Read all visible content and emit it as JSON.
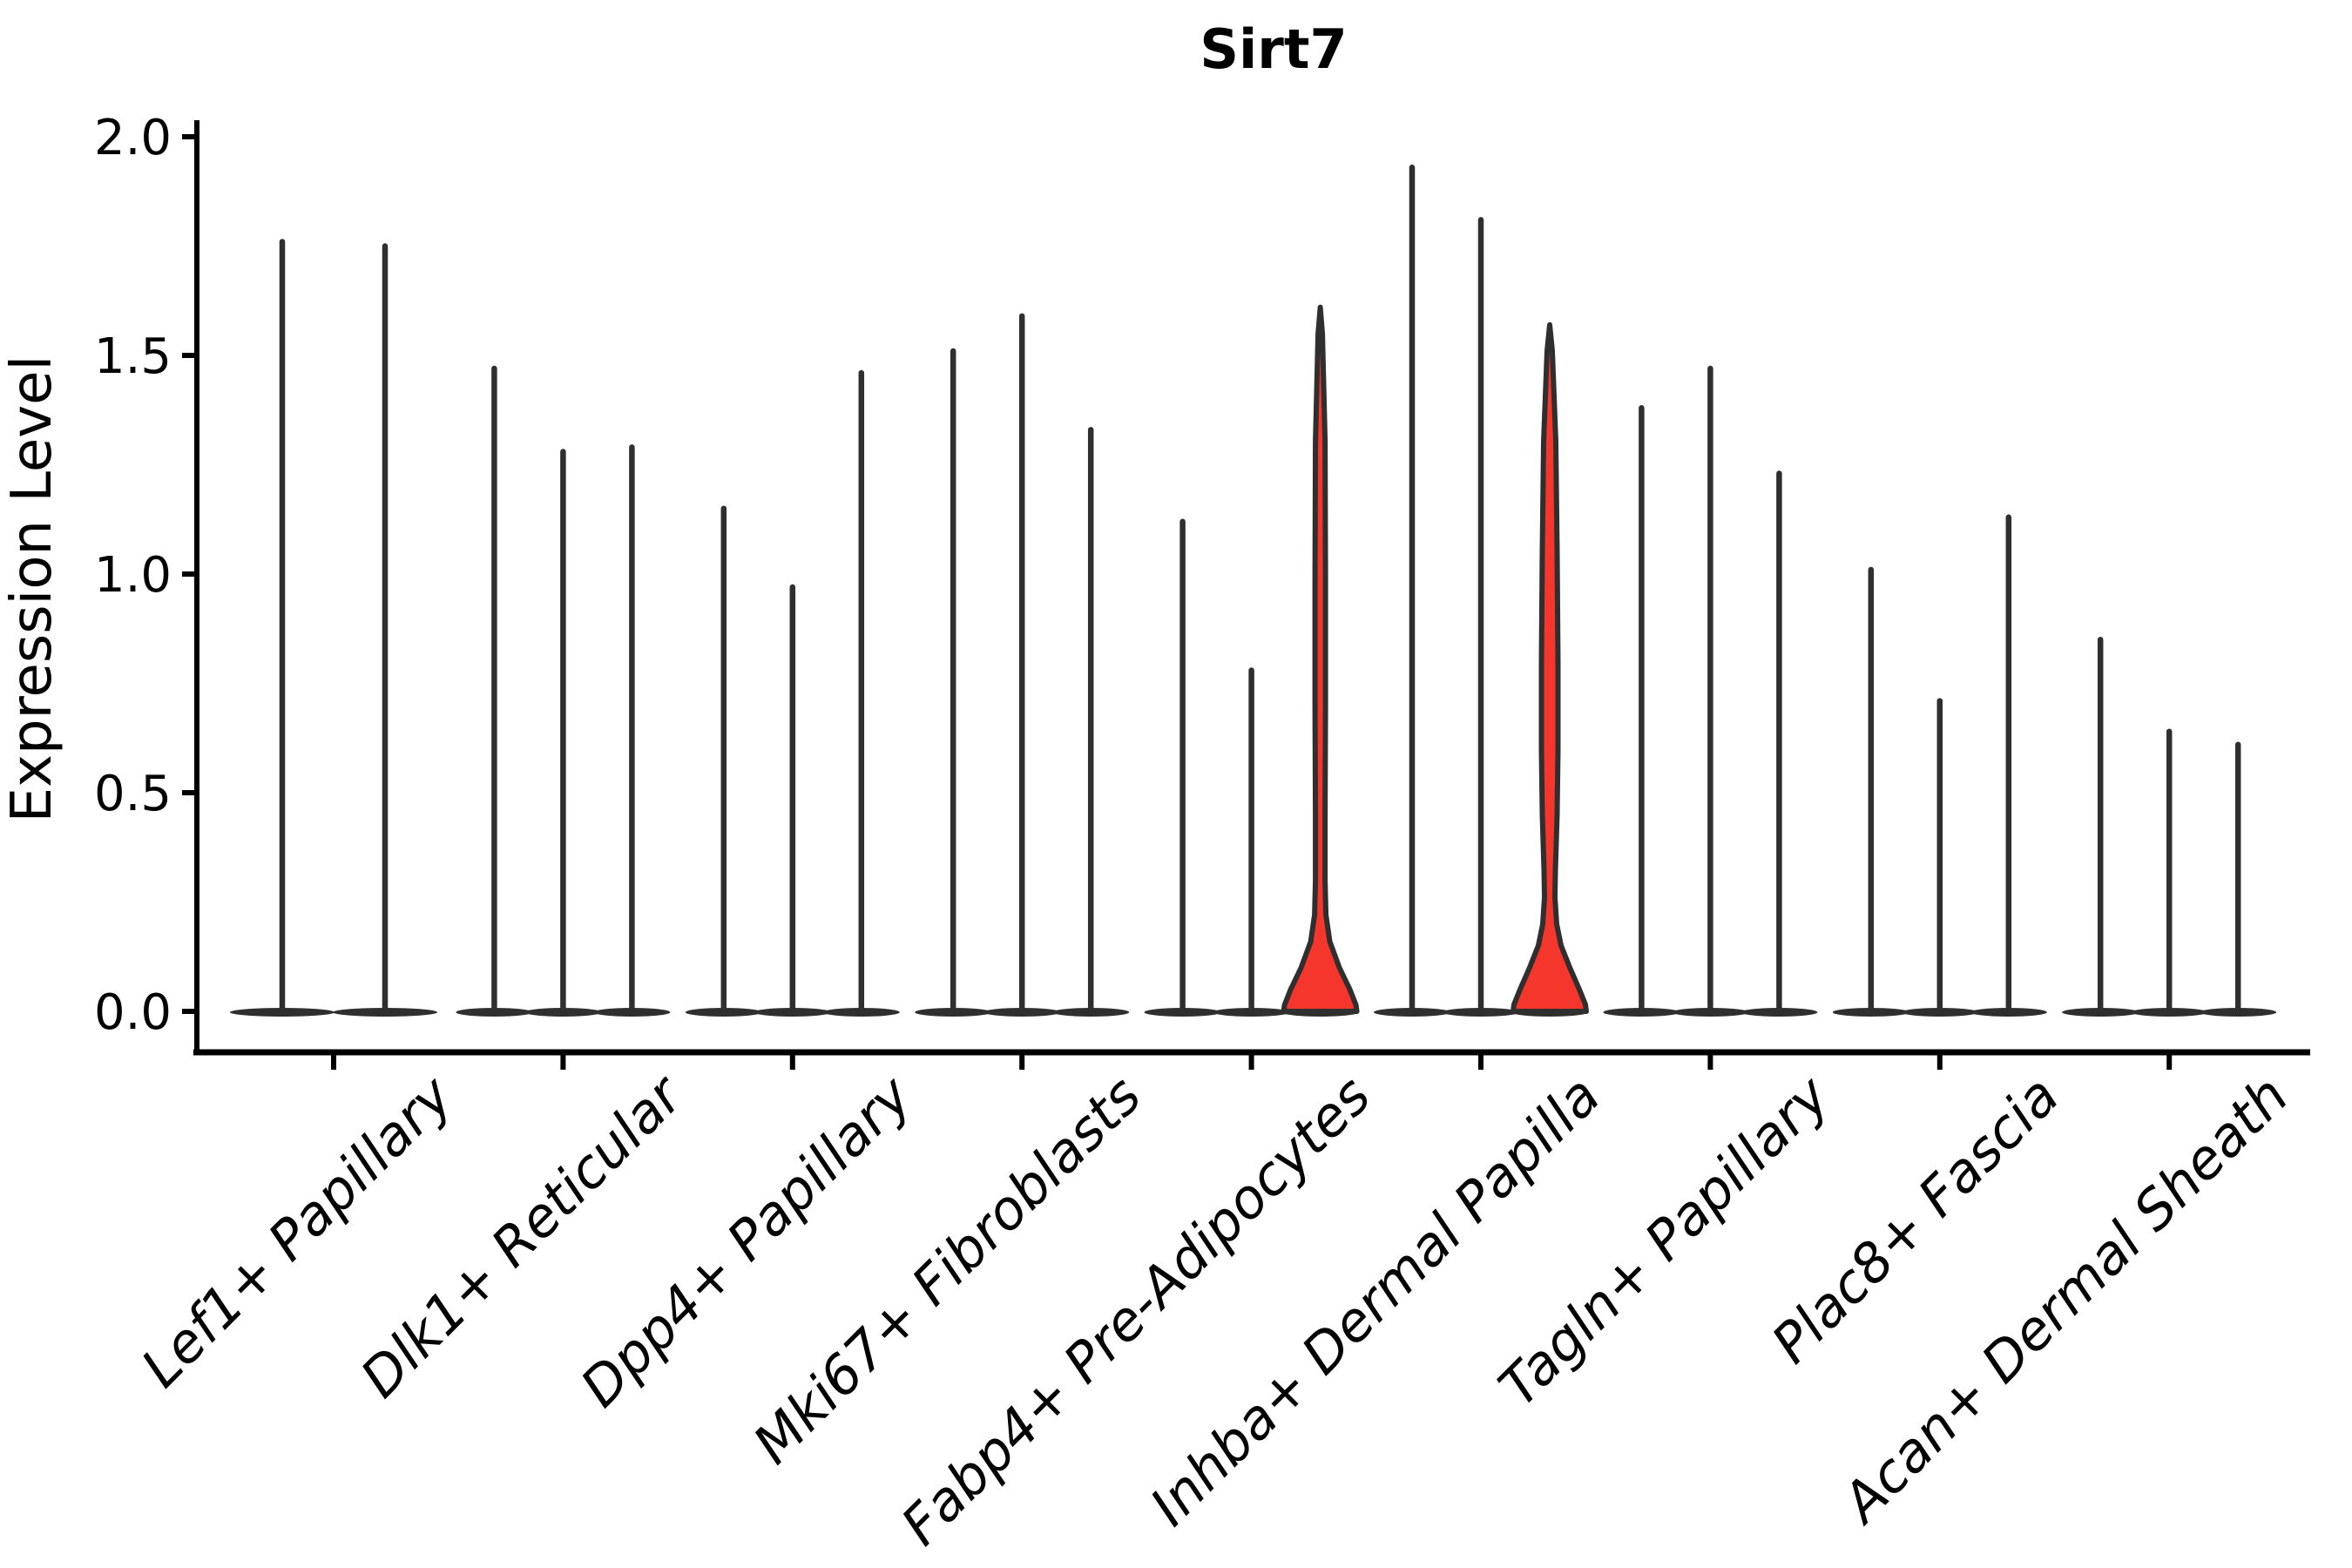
{
  "title": "Sirt7",
  "ylabel": "Expression Level",
  "chart_data": {
    "type": "violin",
    "title": "Sirt7",
    "xlabel": "",
    "ylabel": "Expression Level",
    "ylim": [
      0.0,
      2.0
    ],
    "yticks": [
      0.0,
      0.5,
      1.0,
      1.5,
      2.0
    ],
    "ytick_labels": [
      "0.0",
      "0.5",
      "1.0",
      "1.5",
      "2.0"
    ],
    "grid": false,
    "legend": false,
    "categories": [
      "Lef1+ Papillary",
      "Dlk1+ Reticular",
      "Dpp4+ Papillary",
      "Mki67+ Fibroblasts",
      "Fabp4+ Pre-Adipocytes",
      "Inhba+ Dermal Papilla",
      "Tagln+ Papillary",
      "Plac8+ Fascia",
      "Acan+ Dermal Sheath"
    ],
    "groups": [
      {
        "label": "Lef1+ Papillary",
        "violins": [
          {
            "max_expression": 1.76,
            "highlighted": false,
            "shape": "spike"
          },
          {
            "max_expression": 1.75,
            "highlighted": false,
            "shape": "spike"
          }
        ]
      },
      {
        "label": "Dlk1+ Reticular",
        "violins": [
          {
            "max_expression": 1.47,
            "highlighted": false,
            "shape": "spike"
          },
          {
            "max_expression": 1.28,
            "highlighted": false,
            "shape": "spike"
          },
          {
            "max_expression": 1.29,
            "highlighted": false,
            "shape": "spike"
          }
        ]
      },
      {
        "label": "Dpp4+ Papillary",
        "violins": [
          {
            "max_expression": 1.15,
            "highlighted": false,
            "shape": "spike"
          },
          {
            "max_expression": 0.97,
            "highlighted": false,
            "shape": "spike"
          },
          {
            "max_expression": 1.46,
            "highlighted": false,
            "shape": "spike"
          }
        ]
      },
      {
        "label": "Mki67+ Fibroblasts",
        "violins": [
          {
            "max_expression": 1.51,
            "highlighted": false,
            "shape": "spike"
          },
          {
            "max_expression": 1.59,
            "highlighted": false,
            "shape": "spike"
          },
          {
            "max_expression": 1.33,
            "highlighted": false,
            "shape": "spike"
          }
        ]
      },
      {
        "label": "Fabp4+ Pre-Adipocytes",
        "violins": [
          {
            "max_expression": 1.12,
            "highlighted": false,
            "shape": "spike"
          },
          {
            "max_expression": 0.78,
            "highlighted": false,
            "shape": "spike"
          },
          {
            "max_expression": 1.61,
            "highlighted": true,
            "shape": "narrow-neck"
          }
        ]
      },
      {
        "label": "Inhba+ Dermal Papilla",
        "violins": [
          {
            "max_expression": 1.93,
            "highlighted": false,
            "shape": "spike"
          },
          {
            "max_expression": 1.81,
            "highlighted": false,
            "shape": "spike"
          },
          {
            "max_expression": 1.57,
            "highlighted": true,
            "shape": "bulged-neck"
          }
        ]
      },
      {
        "label": "Tagln+ Papillary",
        "violins": [
          {
            "max_expression": 1.38,
            "highlighted": false,
            "shape": "spike"
          },
          {
            "max_expression": 1.47,
            "highlighted": false,
            "shape": "spike"
          },
          {
            "max_expression": 1.23,
            "highlighted": false,
            "shape": "spike"
          }
        ]
      },
      {
        "label": "Plac8+ Fascia",
        "violins": [
          {
            "max_expression": 1.01,
            "highlighted": false,
            "shape": "spike"
          },
          {
            "max_expression": 0.71,
            "highlighted": false,
            "shape": "spike"
          },
          {
            "max_expression": 1.13,
            "highlighted": false,
            "shape": "spike"
          }
        ]
      },
      {
        "label": "Acan+ Dermal Sheath",
        "violins": [
          {
            "max_expression": 0.85,
            "highlighted": false,
            "shape": "spike"
          },
          {
            "max_expression": 0.64,
            "highlighted": false,
            "shape": "spike"
          },
          {
            "max_expression": 0.61,
            "highlighted": false,
            "shape": "spike"
          }
        ]
      }
    ],
    "colors": {
      "violin_stroke": "#2f2f2f",
      "highlight_fill": "#f5362d",
      "axis": "#000000",
      "text": "#000000"
    }
  }
}
